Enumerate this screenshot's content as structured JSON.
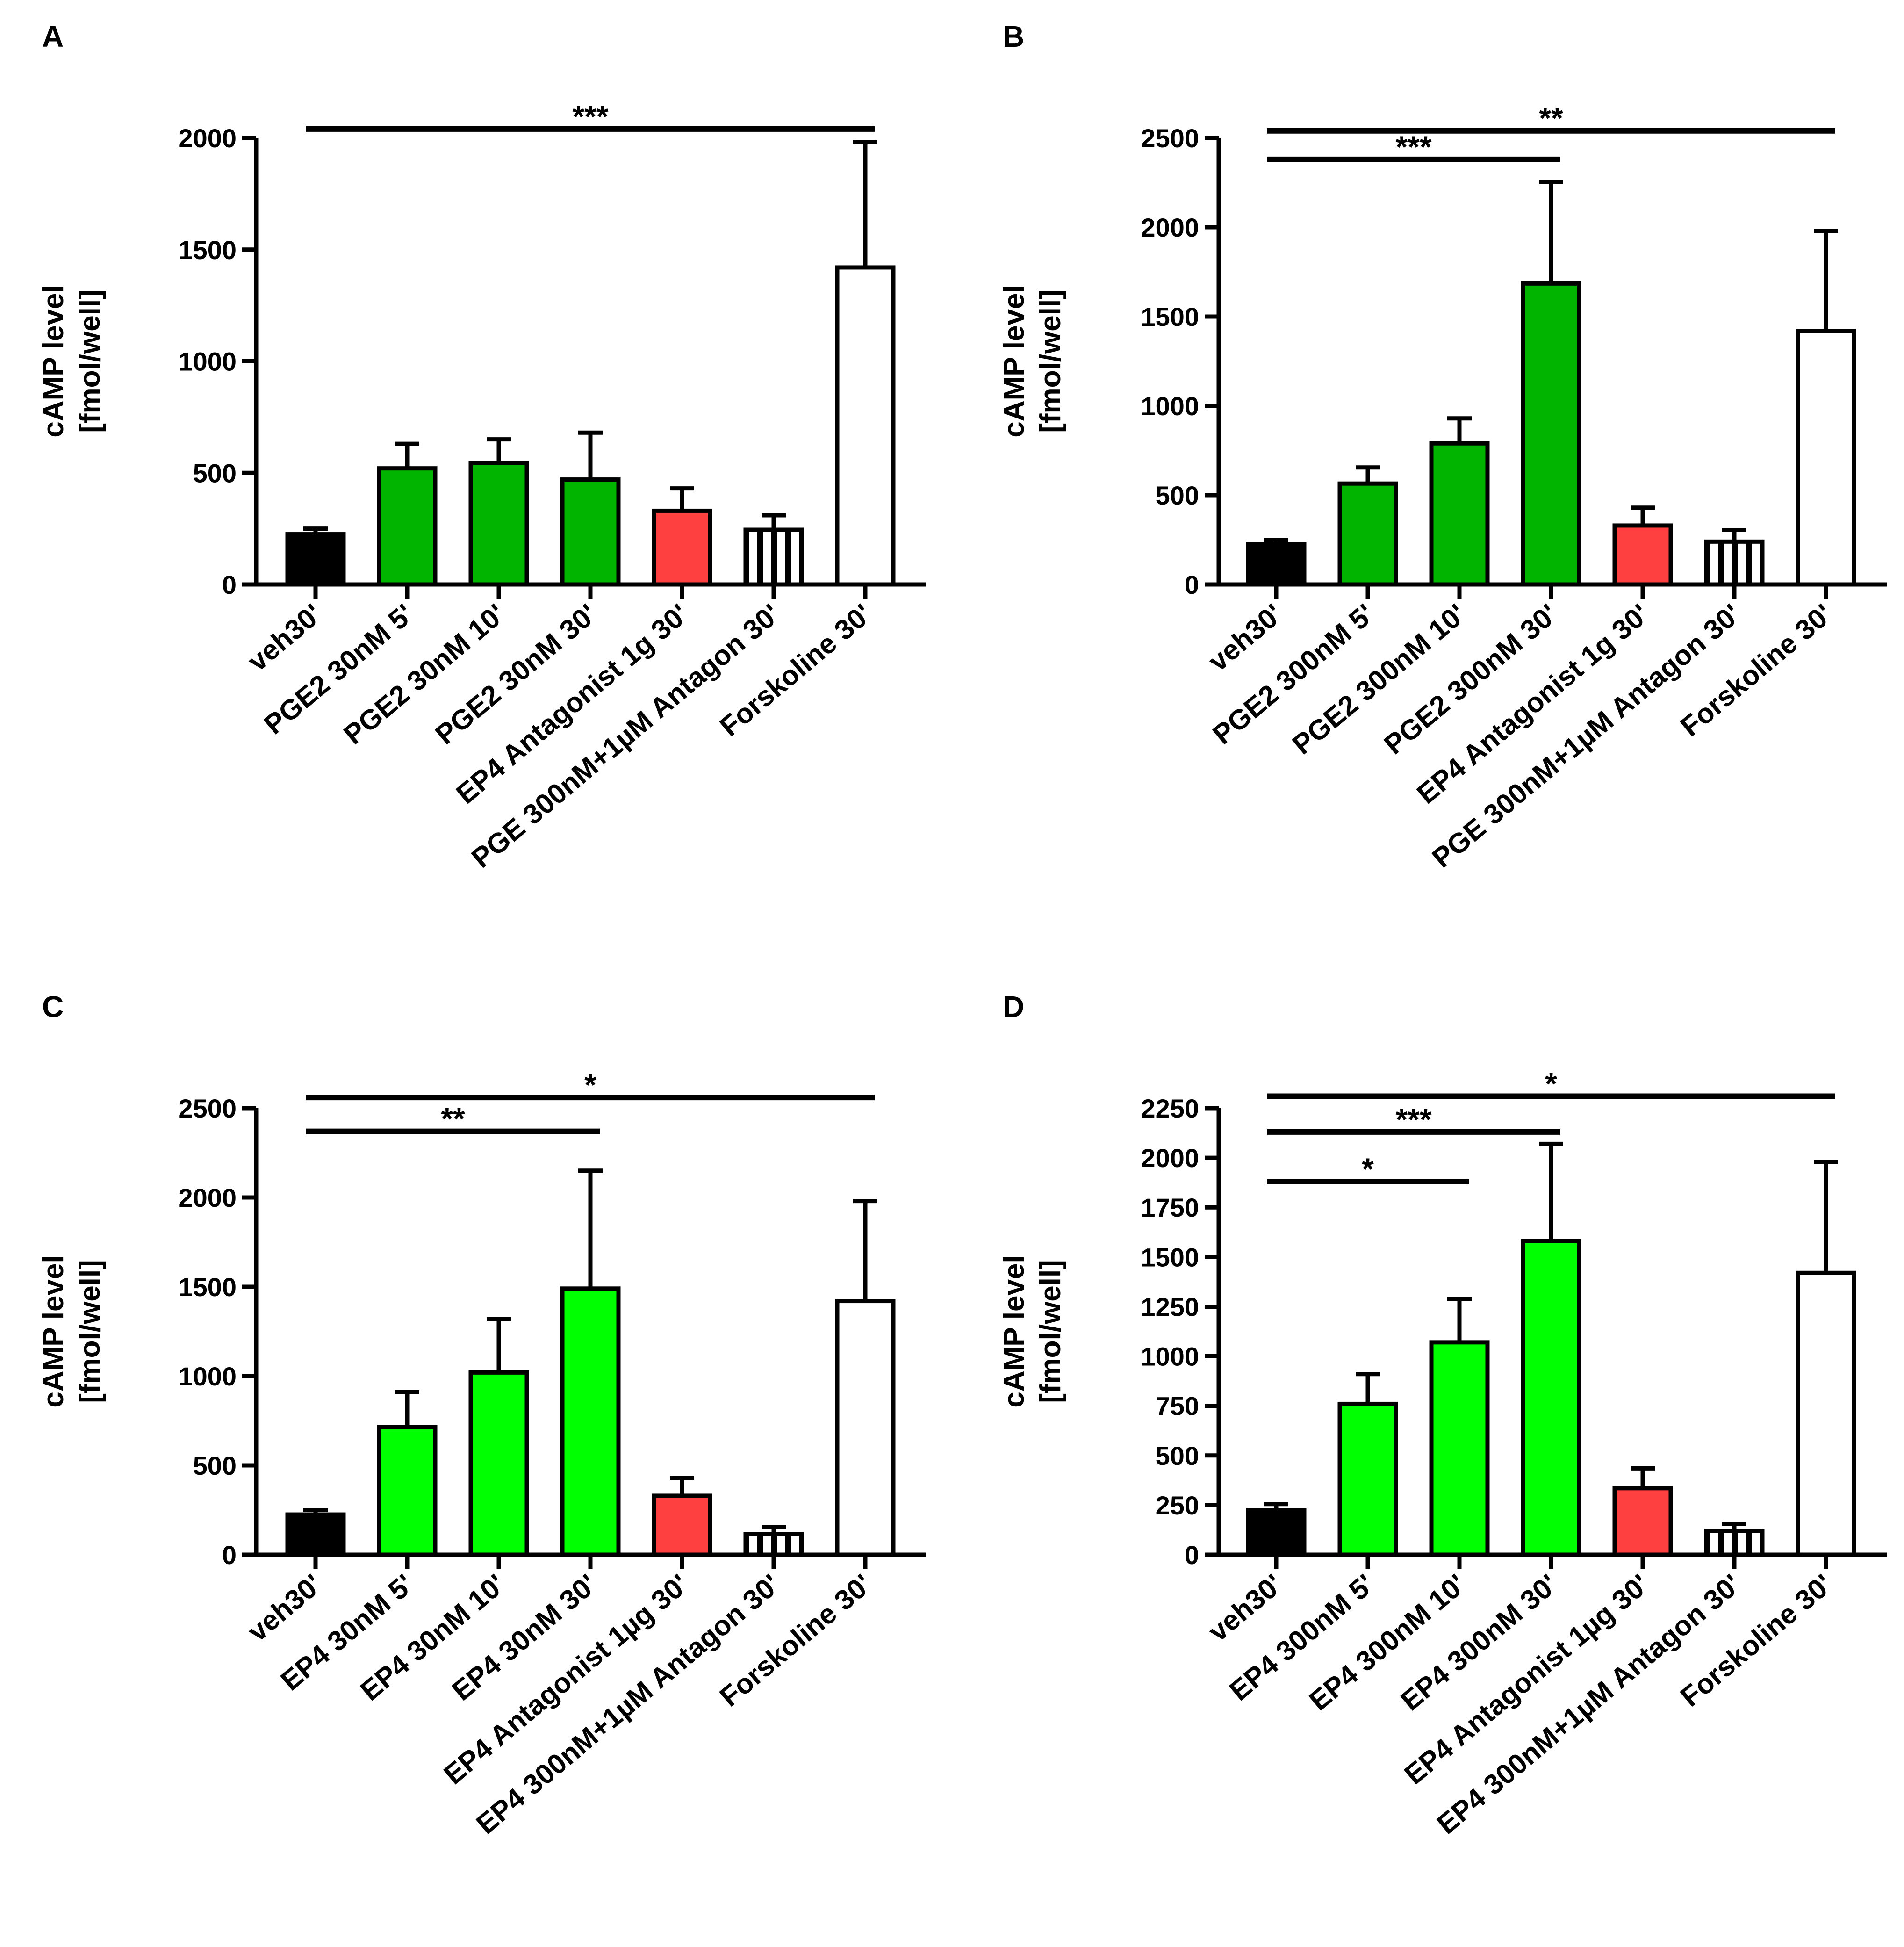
{
  "colors": {
    "black": "#000000",
    "dark_green": "#00b400",
    "light_green": "#00ff00",
    "red": "#ff4040",
    "white": "#ffffff"
  },
  "chart_data": [
    {
      "panel": "A",
      "type": "bar",
      "ylabel": [
        "cAMP level",
        "[fmol/well]"
      ],
      "ylim": [
        0,
        2000
      ],
      "yticks": [
        0,
        500,
        1000,
        1500,
        2000
      ],
      "categories": [
        "veh30'",
        "PGE2 30nM 5'",
        "PGE2 30nM 10'",
        "PGE2 30nM 30'",
        "EP4 Antagonist 1g 30'",
        "PGE 300nM+1µM Antagon 30'",
        "Forskoline 30'"
      ],
      "values": [
        225,
        520,
        545,
        470,
        330,
        245,
        1420
      ],
      "errors": [
        25,
        110,
        105,
        210,
        100,
        65,
        560
      ],
      "fills": [
        "black",
        "dark_green",
        "dark_green",
        "dark_green",
        "red",
        "striped",
        "white"
      ],
      "significance": [
        {
          "from": 0,
          "to": 6,
          "y": 2040,
          "label": "***"
        }
      ]
    },
    {
      "panel": "B",
      "type": "bar",
      "ylabel": [
        "cAMP level",
        "[fmol/well]"
      ],
      "ylim": [
        0,
        2500
      ],
      "yticks": [
        0,
        500,
        1000,
        1500,
        2000,
        2500
      ],
      "categories": [
        "veh30'",
        "PGE2 300nM 5'",
        "PGE2 300nM 10'",
        "PGE2 300nM 30'",
        "EP4 Antagonist 1g 30'",
        "PGE 300nM+1µM Antagon 30'",
        "Forskoline 30'"
      ],
      "values": [
        225,
        565,
        790,
        1685,
        330,
        240,
        1420
      ],
      "errors": [
        25,
        90,
        140,
        570,
        100,
        65,
        560
      ],
      "fills": [
        "black",
        "dark_green",
        "dark_green",
        "dark_green",
        "red",
        "striped",
        "white"
      ],
      "significance": [
        {
          "from": 0,
          "to": 6,
          "y": 2540,
          "label": "**"
        },
        {
          "from": 0,
          "to": 3,
          "y": 2380,
          "label": "***"
        }
      ]
    },
    {
      "panel": "C",
      "type": "bar",
      "ylabel": [
        "cAMP level",
        "[fmol/well]"
      ],
      "ylim": [
        0,
        2500
      ],
      "yticks": [
        0,
        500,
        1000,
        1500,
        2000,
        2500
      ],
      "categories": [
        "veh30'",
        "EP4 30nM 5'",
        "EP4 30nM 10'",
        "EP4 30nM 30'",
        "EP4 Antagonist 1µg 30'",
        "EP4 300nM+1µM Antagon 30'",
        "Forskoline 30'"
      ],
      "values": [
        225,
        715,
        1020,
        1490,
        330,
        115,
        1420
      ],
      "errors": [
        25,
        195,
        300,
        660,
        100,
        40,
        560
      ],
      "fills": [
        "black",
        "light_green",
        "light_green",
        "light_green",
        "red",
        "striped",
        "white"
      ],
      "significance": [
        {
          "from": 0,
          "to": 6,
          "y": 2560,
          "label": "*"
        },
        {
          "from": 0,
          "to": 3,
          "y": 2370,
          "label": "**"
        }
      ]
    },
    {
      "panel": "D",
      "type": "bar",
      "ylabel": [
        "cAMP level",
        "[fmol/well]"
      ],
      "ylim": [
        0,
        2250
      ],
      "yticks": [
        0,
        250,
        500,
        750,
        1000,
        1250,
        1500,
        1750,
        2000,
        2250
      ],
      "categories": [
        "veh30'",
        "EP4 300nM 5'",
        "EP4 300nM 10'",
        "EP4 300nM 30'",
        "EP4 Antagonist 1µg 30'",
        "EP4 300nM+1µM Antagon 30'",
        "Forskoline 30'"
      ],
      "values": [
        225,
        760,
        1070,
        1580,
        335,
        120,
        1420
      ],
      "errors": [
        30,
        150,
        220,
        490,
        100,
        35,
        560
      ],
      "fills": [
        "black",
        "light_green",
        "light_green",
        "light_green",
        "red",
        "striped",
        "white"
      ],
      "significance": [
        {
          "from": 0,
          "to": 6,
          "y": 2310,
          "label": "*"
        },
        {
          "from": 0,
          "to": 3,
          "y": 2130,
          "label": "***"
        },
        {
          "from": 0,
          "to": 2,
          "y": 1880,
          "label": "*"
        }
      ]
    }
  ]
}
